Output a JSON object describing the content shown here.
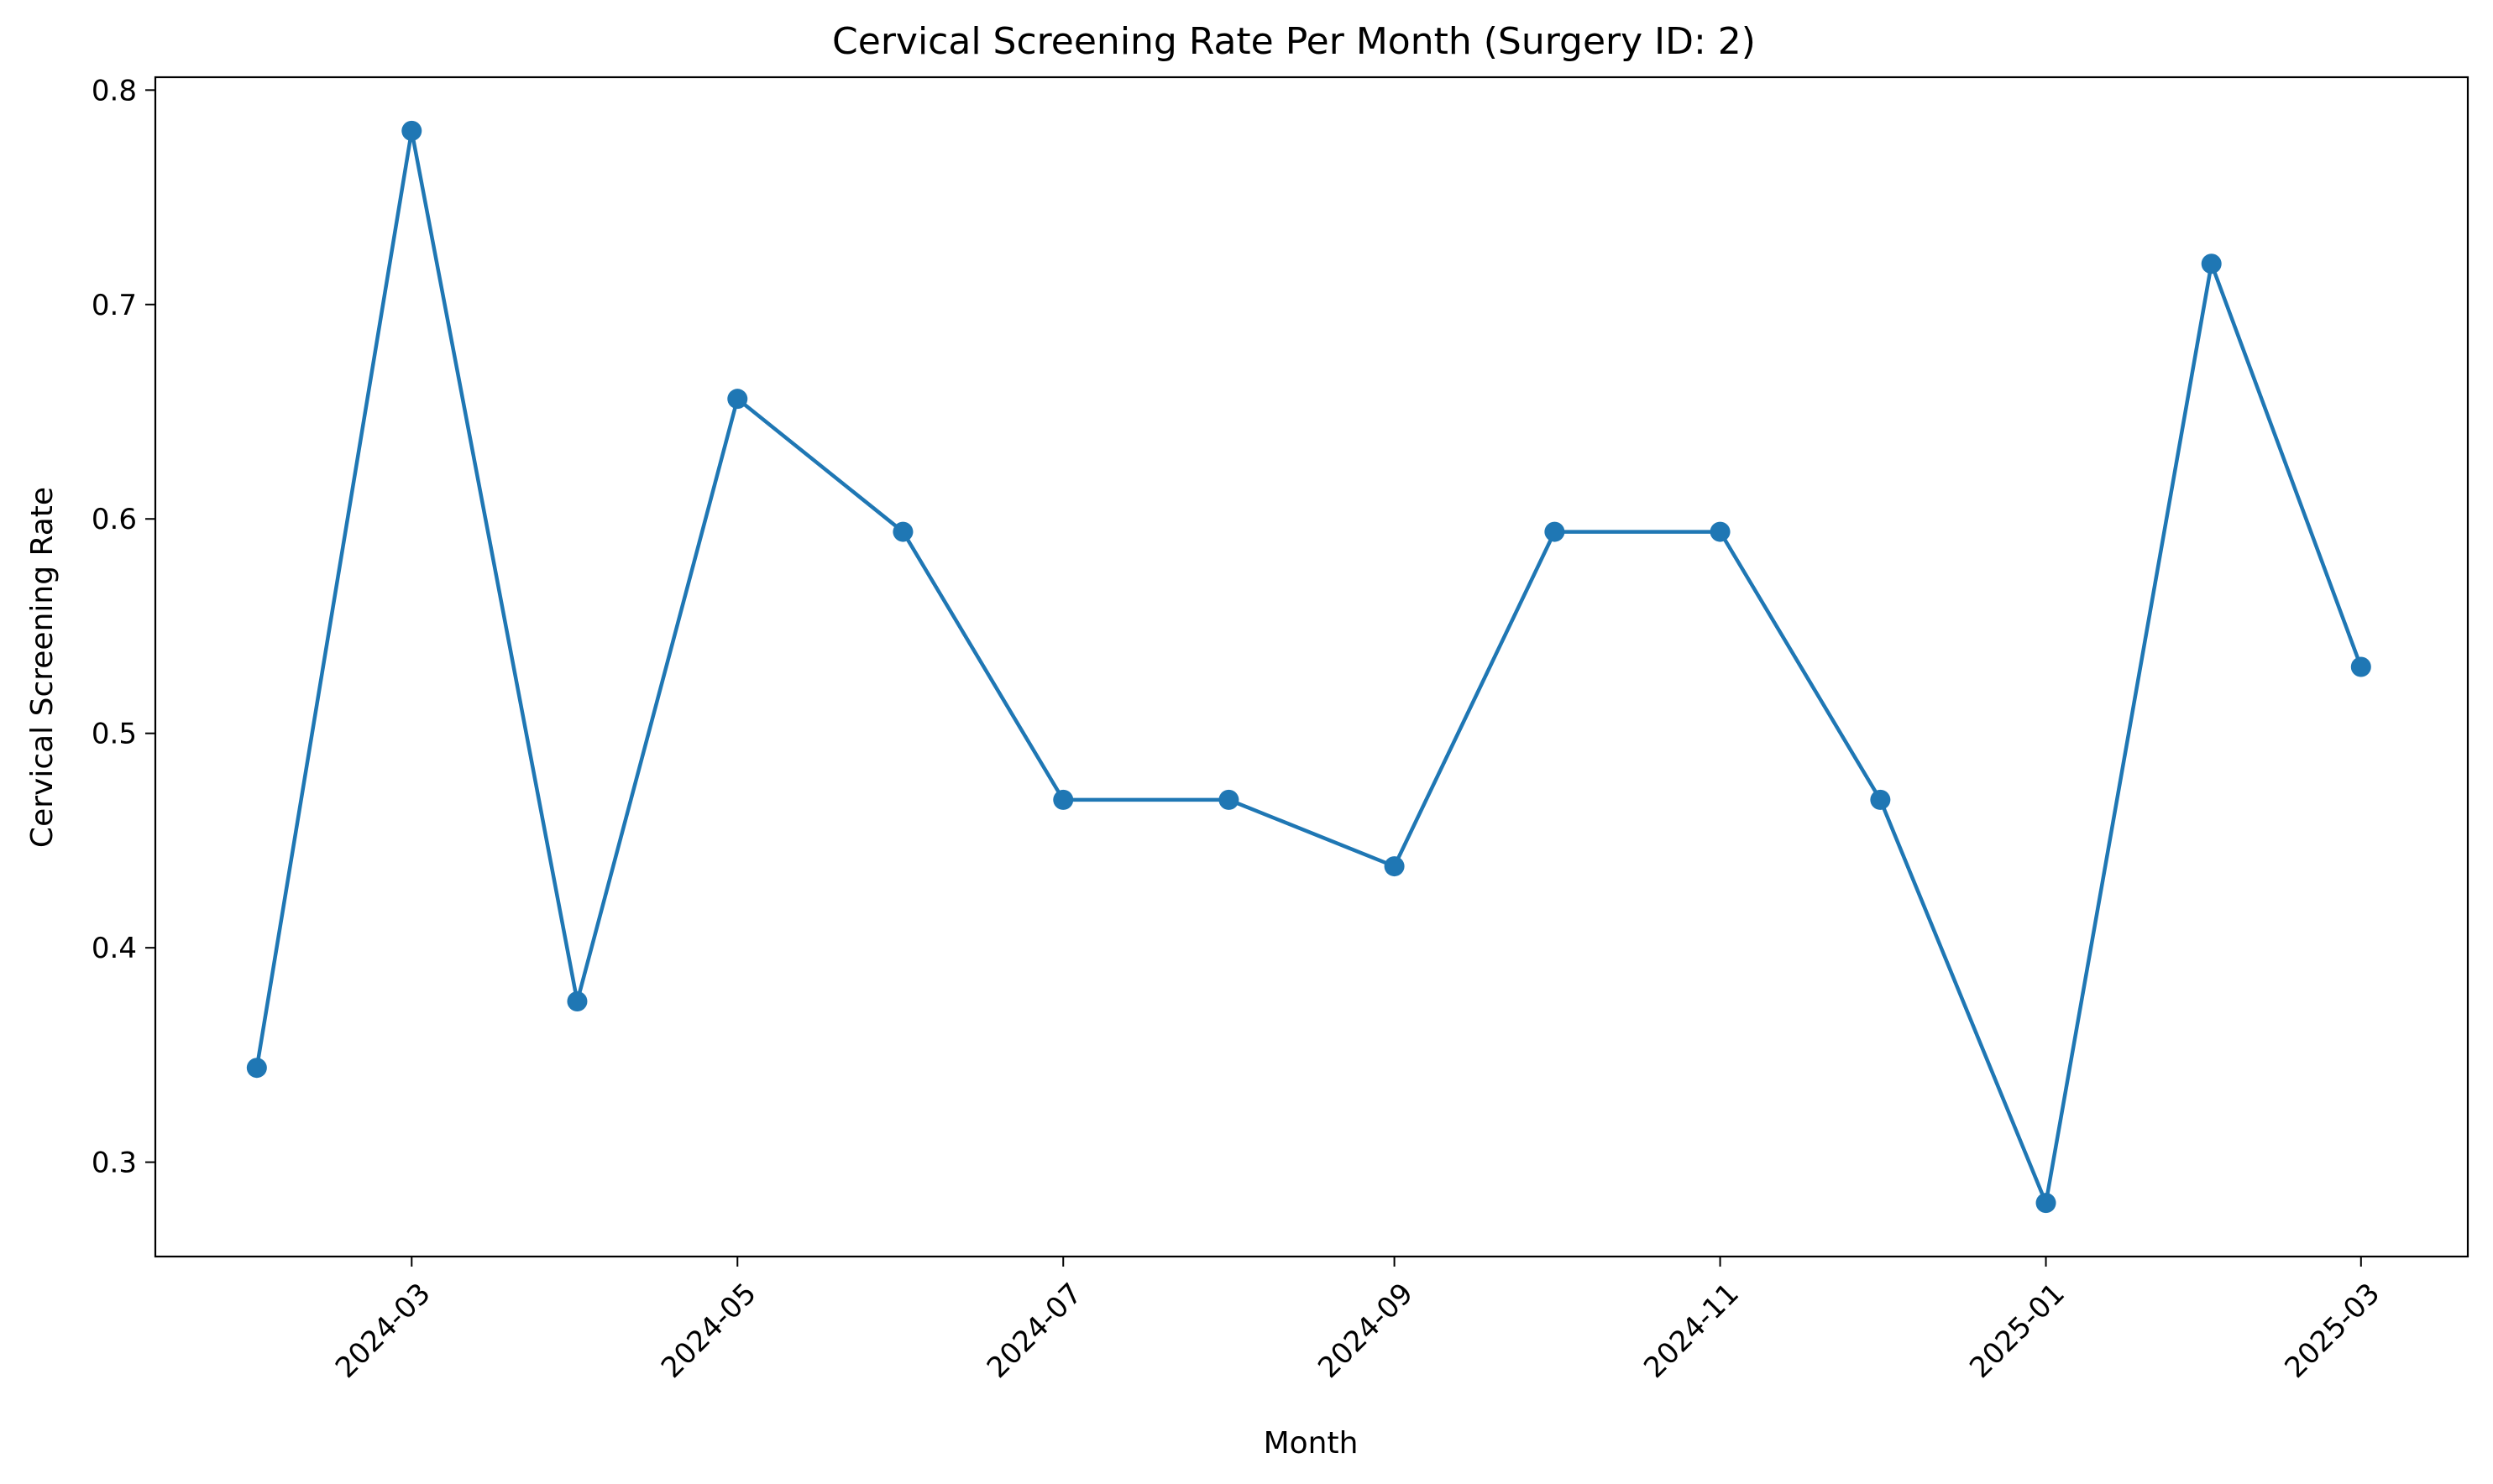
{
  "chart_data": {
    "type": "line",
    "title": "Cervical Screening Rate Per Month (Surgery ID: 2)",
    "xlabel": "Month",
    "ylabel": "Cervical Screening Rate",
    "x": [
      "2024-02-01",
      "2024-03-01",
      "2024-04-01",
      "2024-05-01",
      "2024-06-01",
      "2024-07-01",
      "2024-08-01",
      "2024-09-01",
      "2024-10-01",
      "2024-11-01",
      "2024-12-01",
      "2025-01-01",
      "2025-02-01",
      "2025-03-01"
    ],
    "series": [
      {
        "values": [
          0.344,
          0.781,
          0.375,
          0.656,
          0.594,
          0.469,
          0.469,
          0.438,
          0.594,
          0.594,
          0.469,
          0.281,
          0.719,
          0.531
        ],
        "color": "#1f77b4",
        "marker": "circle"
      }
    ],
    "xlim": [
      "2024-01-13",
      "2025-03-21"
    ],
    "ylim": [
      0.256,
      0.806
    ],
    "x_ticks": [
      "2024-03",
      "2024-05",
      "2024-07",
      "2024-09",
      "2024-11",
      "2025-01",
      "2025-03"
    ],
    "y_ticks": [
      0.3,
      0.4,
      0.5,
      0.6,
      0.7,
      0.8
    ],
    "y_tick_labels": [
      "0.3",
      "0.4",
      "0.5",
      "0.6",
      "0.7",
      "0.8"
    ],
    "grid": false,
    "legend": false
  }
}
